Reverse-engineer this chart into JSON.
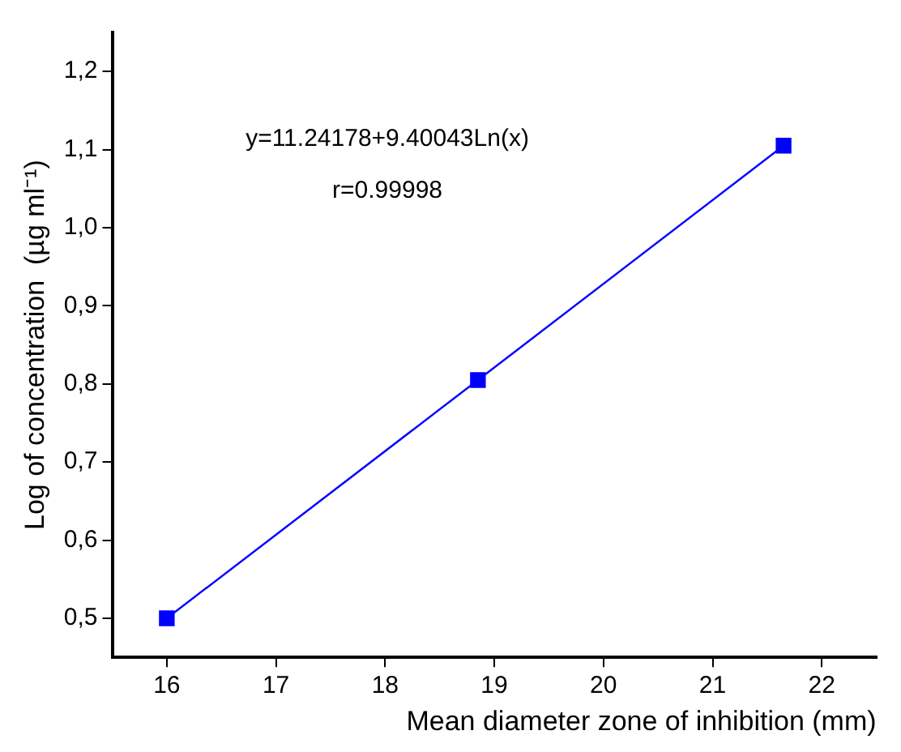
{
  "chart_data": {
    "type": "line",
    "xlabel": "Mean diameter zone of inhibition (mm)",
    "ylabel": "Log of concentration  (µg ml⁻¹)",
    "annotations": [
      "y=11.24178+9.40043Ln(x)",
      "r=0.99998"
    ],
    "x": [
      16,
      18.85,
      21.65
    ],
    "series": [
      {
        "color": "#0000ff",
        "values": [
          0.5,
          0.805,
          1.105
        ]
      }
    ],
    "xlim": [
      15.5,
      22.5
    ],
    "xticks": [
      16,
      17,
      18,
      19,
      20,
      21,
      22
    ],
    "ylim": [
      0.45,
      1.25
    ],
    "yticks": [
      {
        "value": 0.5,
        "label": "0,5"
      },
      {
        "value": 0.6,
        "label": "0,6"
      },
      {
        "value": 0.7,
        "label": "0,7"
      },
      {
        "value": 0.8,
        "label": "0,8"
      },
      {
        "value": 0.9,
        "label": "0,9"
      },
      {
        "value": 1.0,
        "label": "1,0"
      },
      {
        "value": 1.1,
        "label": "1,1"
      },
      {
        "value": 1.2,
        "label": "1,2"
      }
    ],
    "grid": false,
    "legend": false,
    "marker": "square",
    "line_style": "solid"
  }
}
